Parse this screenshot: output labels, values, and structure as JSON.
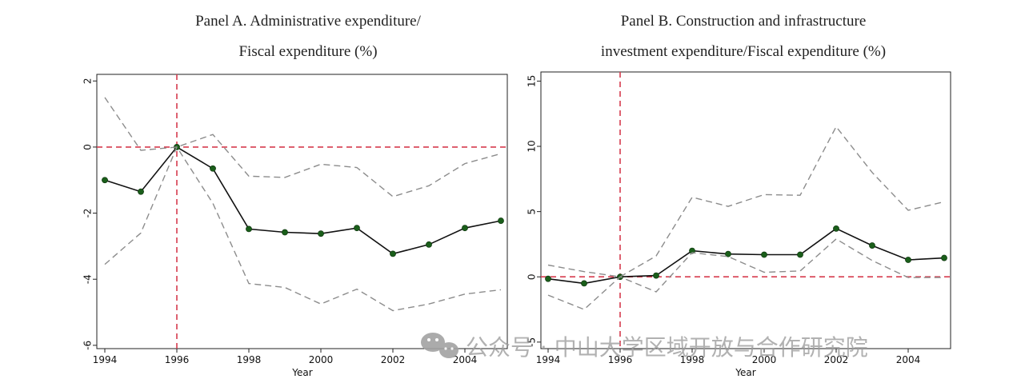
{
  "chart_data": [
    {
      "type": "line",
      "title_line1": "Panel A. Administrative expenditure/",
      "title_line2": "Fiscal expenditure (%)",
      "xlabel": "Year",
      "ylabel": "",
      "x": [
        1994,
        1995,
        1996,
        1997,
        1998,
        1999,
        2000,
        2001,
        2002,
        2003,
        2004,
        2005
      ],
      "xticks": [
        "1994",
        "1996",
        "1998",
        "2000",
        "2002",
        "2004"
      ],
      "xlim": [
        1994,
        2005
      ],
      "yticks": [
        "-6",
        "-4",
        "-2",
        "0",
        "2"
      ],
      "ylim": [
        -6.1,
        2.2
      ],
      "reference_lines": {
        "x": 1996,
        "y": 0
      },
      "series": [
        {
          "role": "estimate",
          "values": [
            -1.0,
            -1.35,
            0.0,
            -0.65,
            -2.48,
            -2.58,
            -2.62,
            -2.45,
            -3.23,
            -2.95,
            -2.45,
            -2.23
          ]
        },
        {
          "role": "upper_ci",
          "values": [
            1.5,
            -0.1,
            0.0,
            0.38,
            -0.88,
            -0.92,
            -0.52,
            -0.62,
            -1.5,
            -1.17,
            -0.5,
            -0.2
          ]
        },
        {
          "role": "lower_ci",
          "values": [
            -3.55,
            -2.6,
            0.0,
            -1.7,
            -4.13,
            -4.25,
            -4.75,
            -4.3,
            -4.95,
            -4.75,
            -4.45,
            -4.32
          ]
        }
      ],
      "grid": false,
      "colors": {
        "estimate": "#111111",
        "marker": "#1a5e1a",
        "ci": "#8c8c8c",
        "reference": "#d63b4e"
      }
    },
    {
      "type": "line",
      "title_line1": "Panel B. Construction and infrastructure",
      "title_line2": "investment expenditure/Fiscal expenditure (%)",
      "xlabel": "Year",
      "ylabel": "",
      "x": [
        1994,
        1995,
        1996,
        1997,
        1998,
        1999,
        2000,
        2001,
        2002,
        2003,
        2004,
        2005
      ],
      "xticks": [
        "1994",
        "1996",
        "1998",
        "2000",
        "2002",
        "2004"
      ],
      "xlim": [
        1994,
        2005
      ],
      "yticks": [
        "-5",
        "0",
        "5",
        "10",
        "15"
      ],
      "ylim": [
        -5.5,
        15.7
      ],
      "reference_lines": {
        "x": 1996,
        "y": 0
      },
      "series": [
        {
          "role": "estimate",
          "values": [
            -0.15,
            -0.5,
            0.0,
            0.1,
            2.0,
            1.75,
            1.7,
            1.7,
            3.7,
            2.4,
            1.3,
            1.45
          ]
        },
        {
          "role": "upper_ci",
          "values": [
            0.9,
            0.4,
            0.0,
            1.6,
            6.1,
            5.4,
            6.3,
            6.25,
            11.5,
            8.0,
            5.1,
            5.75
          ]
        },
        {
          "role": "lower_ci",
          "values": [
            -1.4,
            -2.5,
            0.0,
            -1.15,
            1.85,
            1.55,
            0.35,
            0.45,
            2.9,
            1.25,
            -0.05,
            -0.05
          ]
        }
      ],
      "grid": false,
      "colors": {
        "estimate": "#111111",
        "marker": "#1a5e1a",
        "ci": "#8c8c8c",
        "reference": "#d63b4e"
      }
    }
  ],
  "watermark": {
    "text": "公众号 · 中山大学区域开放与合作研究院",
    "icon": "wechat-logo-icon"
  }
}
